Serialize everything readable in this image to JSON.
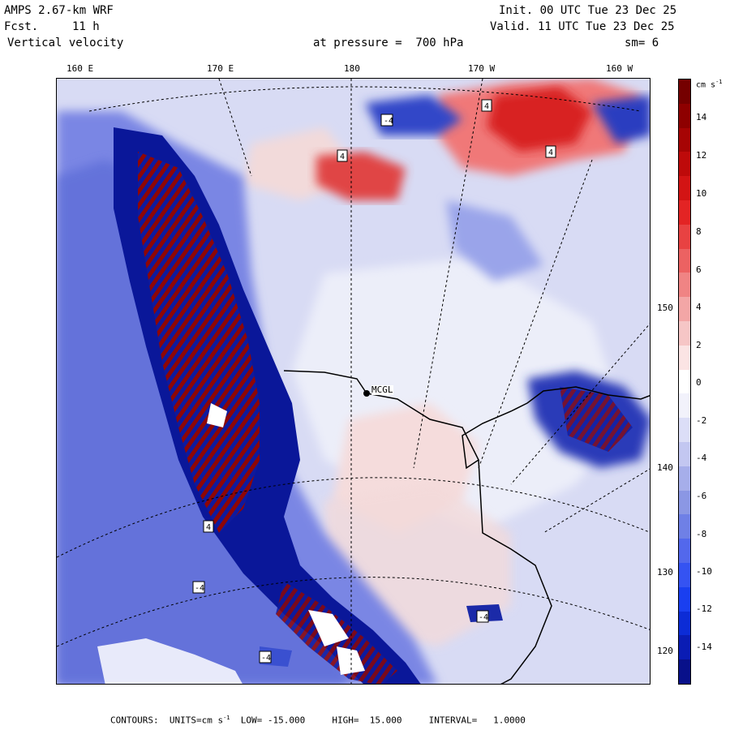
{
  "header": {
    "model": "AMPS 2.67-km WRF",
    "fcst_label": "Fcst.",
    "fcst_value": "11 h",
    "field": "Vertical velocity",
    "level": "at pressure =  700 hPa",
    "init": "Init. 00 UTC Tue 23 Dec 25",
    "valid": "Valid. 11 UTC Tue 23 Dec 25",
    "smoothing": "sm= 6"
  },
  "lon_labels": [
    "160 E",
    "170 E",
    "180",
    "170 W",
    "160 W"
  ],
  "lat_labels": [
    "150 W",
    "140 W",
    "130 W",
    "120 W"
  ],
  "station": "MCGL",
  "colorbar": {
    "unit_text": "cm s",
    "unit_exp": "-1",
    "ticks": [
      "14",
      "12",
      "10",
      "8",
      "6",
      "4",
      "2",
      "0",
      "-2",
      "-4",
      "-6",
      "-8",
      "-10",
      "-12",
      "-14"
    ],
    "colors": [
      "#08108a",
      "#0a1cb4",
      "#0c2cd6",
      "#1a3ff0",
      "#3553f2",
      "#5368ec",
      "#6f80e6",
      "#8b97e4",
      "#a6aeea",
      "#c3c7f1",
      "#dcdef7",
      "#f2f2fb",
      "#ffffff",
      "#fbe4e4",
      "#f6c6c6",
      "#f3a6a6",
      "#f08484",
      "#ec6262",
      "#e84242",
      "#e32424",
      "#d31414",
      "#be0a0a",
      "#a60404",
      "#8e0000",
      "#750000"
    ]
  },
  "footer": {
    "contours_label": "CONTOURS:",
    "units_label": "UNITS=cm s",
    "units_exp": "-1",
    "low": "LOW= -15.000",
    "high": "HIGH=  15.000",
    "interval": "INTERVAL=   1.0000"
  },
  "chart_data": {
    "type": "heatmap",
    "title": "Vertical velocity at pressure = 700 hPa",
    "units": "cm s-1",
    "color_range": [
      -15,
      15
    ],
    "contour_interval": 1.0,
    "contour_labels": [
      "4",
      "-4"
    ]
  }
}
